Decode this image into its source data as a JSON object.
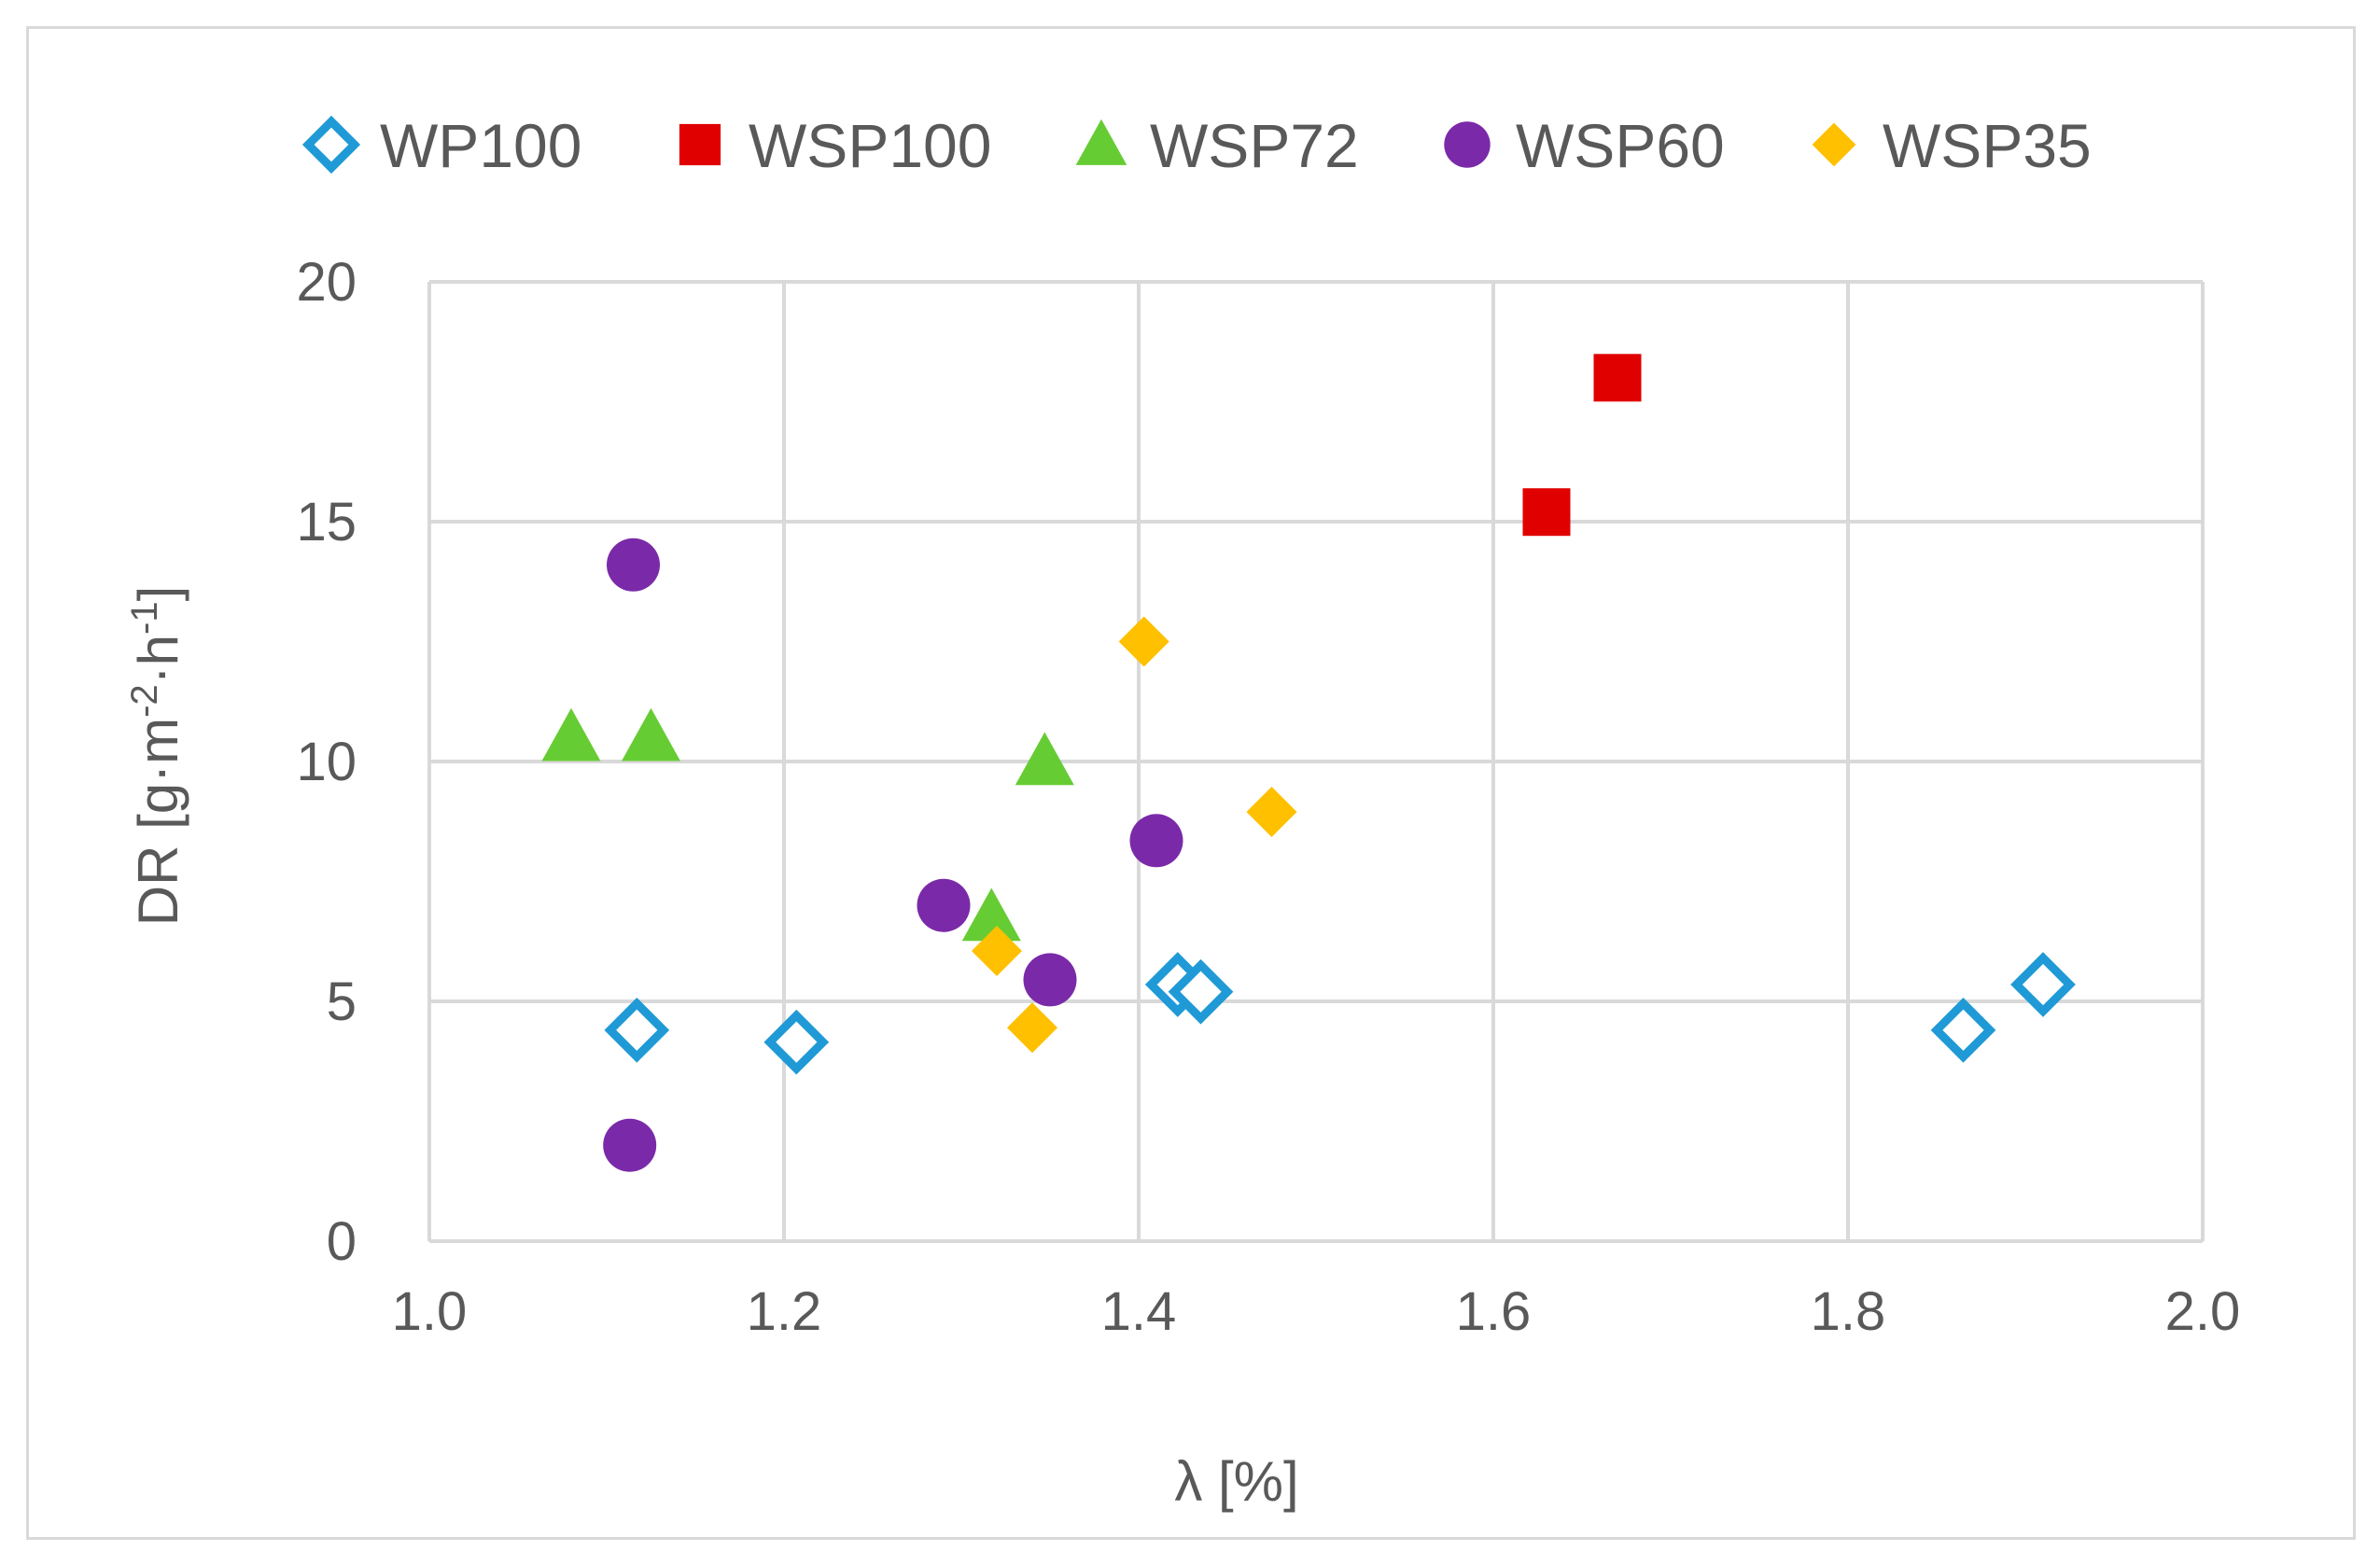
{
  "chart_data": {
    "type": "scatter",
    "title": "",
    "xlabel": "λ [%]",
    "ylabel_main": "DR [g·m",
    "ylabel_sup1": "-2",
    "ylabel_mid": "·h",
    "ylabel_sup2": "-1",
    "ylabel_end": "]",
    "xlim": [
      1.0,
      2.0
    ],
    "ylim": [
      0,
      20
    ],
    "xticks": [
      1.0,
      1.2,
      1.4,
      1.6,
      1.8,
      2.0
    ],
    "xtick_labels": [
      "1.0",
      "1.2",
      "1.4",
      "1.6",
      "1.8",
      "2.0"
    ],
    "yticks": [
      0,
      5,
      10,
      15,
      20
    ],
    "ytick_labels": [
      "0",
      "5",
      "10",
      "15",
      "20"
    ],
    "grid": true,
    "legend_position": "top",
    "series": [
      {
        "name": "WP100",
        "marker": "diamond-open",
        "color": "#1f9ad6",
        "points": [
          [
            1.117,
            4.4
          ],
          [
            1.207,
            4.15
          ],
          [
            1.422,
            5.35
          ],
          [
            1.435,
            5.2
          ],
          [
            1.865,
            4.4
          ],
          [
            1.91,
            5.35
          ]
        ]
      },
      {
        "name": "WSP100",
        "marker": "square",
        "color": "#e00000",
        "points": [
          [
            1.63,
            15.2
          ],
          [
            1.67,
            18.0
          ]
        ]
      },
      {
        "name": "WSP72",
        "marker": "triangle",
        "color": "#66cc33",
        "points": [
          [
            1.08,
            10.5
          ],
          [
            1.125,
            10.5
          ],
          [
            1.317,
            6.75
          ],
          [
            1.347,
            10.0
          ]
        ]
      },
      {
        "name": "WSP60",
        "marker": "circle",
        "color": "#7a2aa8",
        "points": [
          [
            1.113,
            2.0
          ],
          [
            1.115,
            14.1
          ],
          [
            1.29,
            7.0
          ],
          [
            1.35,
            5.45
          ],
          [
            1.41,
            8.35
          ]
        ]
      },
      {
        "name": "WSP35",
        "marker": "diamond",
        "color": "#ffc000",
        "points": [
          [
            1.32,
            6.05
          ],
          [
            1.34,
            4.45
          ],
          [
            1.403,
            12.5
          ],
          [
            1.475,
            8.95
          ]
        ]
      }
    ]
  },
  "colors": {
    "grid": "#d9d9d9",
    "text": "#595959"
  }
}
